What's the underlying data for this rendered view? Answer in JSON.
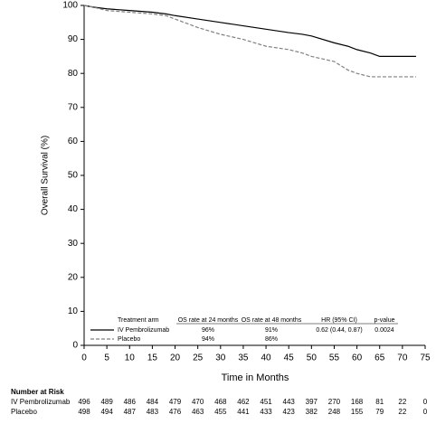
{
  "chart_data": {
    "type": "line",
    "ylabel": "Overall Survival (%)",
    "xlabel": "Time in Months",
    "xlim": [
      0,
      75
    ],
    "xticks": [
      0,
      5,
      10,
      15,
      20,
      25,
      30,
      35,
      40,
      45,
      50,
      55,
      60,
      65,
      70,
      75
    ],
    "ylim": [
      0,
      100
    ],
    "yticks": [
      0,
      10,
      20,
      30,
      40,
      50,
      60,
      70,
      80,
      90,
      100
    ],
    "series": [
      {
        "name": "IV Pembrolizumab",
        "color": "#000000",
        "dash": false,
        "x": [
          0,
          2,
          5,
          10,
          15,
          18,
          20,
          25,
          30,
          35,
          40,
          45,
          48,
          50,
          55,
          58,
          60,
          63,
          65,
          70,
          73
        ],
        "values": [
          100,
          99.5,
          99,
          98.5,
          98,
          97.5,
          97,
          96,
          95,
          94,
          93,
          92,
          91.5,
          91,
          89,
          88,
          87,
          86,
          85,
          85,
          85
        ]
      },
      {
        "name": "Placebo",
        "color": "#808080",
        "dash": true,
        "x": [
          0,
          2,
          5,
          10,
          15,
          18,
          20,
          25,
          30,
          35,
          40,
          45,
          48,
          50,
          55,
          58,
          60,
          63,
          65,
          70,
          73
        ],
        "values": [
          100,
          99.5,
          98.5,
          98,
          97.5,
          97,
          96,
          93.5,
          91.5,
          90,
          88,
          87,
          86,
          85,
          83.5,
          81,
          80,
          79,
          79,
          79,
          79
        ]
      }
    ],
    "legend_table": {
      "headers": [
        "Treatment arm",
        "OS rate at 24 months",
        "OS rate at 48 months",
        "HR (95% CI)",
        "p-value"
      ],
      "rows": [
        [
          "96%",
          "91%",
          "0.62 (0.44, 0.87)",
          "0.0024"
        ],
        [
          "94%",
          "86%"
        ]
      ]
    },
    "risk_table": {
      "title": "Number at Risk",
      "rows": [
        [
          496,
          489,
          486,
          484,
          479,
          470,
          468,
          462,
          451,
          443,
          397,
          270,
          168,
          81,
          22,
          0
        ],
        [
          498,
          494,
          487,
          483,
          476,
          463,
          455,
          441,
          433,
          423,
          382,
          248,
          155,
          79,
          22,
          0
        ]
      ]
    }
  }
}
